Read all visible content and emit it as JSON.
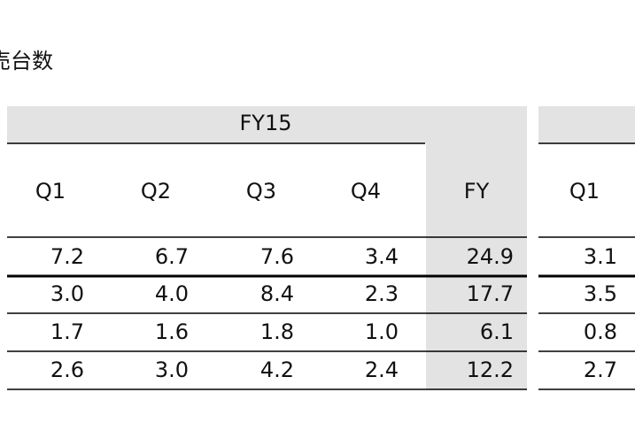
{
  "title": "売台数",
  "table": {
    "group": "FY15",
    "columns": [
      "Q1",
      "Q2",
      "Q3",
      "Q4",
      "FY",
      "Q1"
    ],
    "rows": [
      [
        "7.2",
        "6.7",
        "7.6",
        "3.4",
        "24.9",
        "3.1"
      ],
      [
        "3.0",
        "4.0",
        "8.4",
        "2.3",
        "17.7",
        "3.5"
      ],
      [
        "1.7",
        "1.6",
        "1.8",
        "1.0",
        "6.1",
        "0.8"
      ],
      [
        "2.6",
        "3.0",
        "4.2",
        "2.4",
        "12.2",
        "2.7"
      ]
    ]
  }
}
